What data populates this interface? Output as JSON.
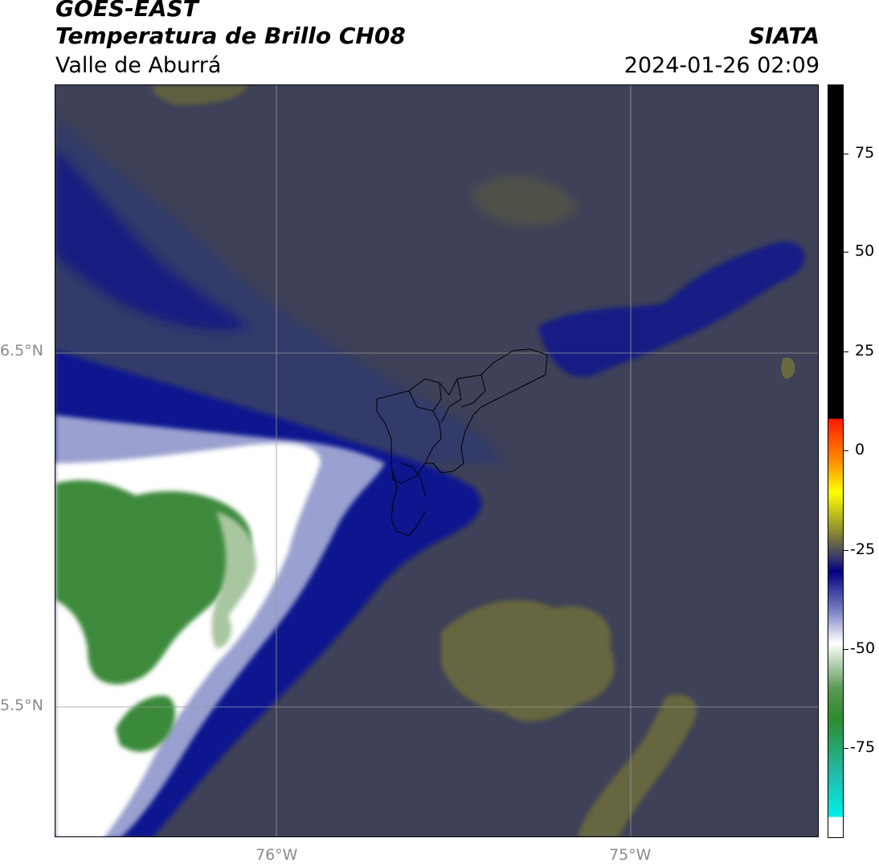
{
  "header": {
    "satellite": "GOES-EAST",
    "product": "Temperatura de Brillo CH08",
    "region": "Valle de Aburrá",
    "agency": "SIATA",
    "datetime": "2024-01-26 02:09"
  },
  "map": {
    "lat_labels": [
      "6.5°N",
      "5.5°N"
    ],
    "lon_labels": [
      "76°W",
      "75°W"
    ]
  },
  "colorbar": {
    "tick_labels": [
      "75",
      "50",
      "25",
      "0",
      "-25",
      "-50",
      "-75"
    ],
    "colors": {
      "black": "#000000",
      "red": "#ff2200",
      "orange": "#ff8a00",
      "yellow": "#ffff00",
      "olive": "#6b6a3a",
      "navy": "#00007a",
      "white": "#ffffff",
      "green": "#3a8c3a",
      "cyan": "#00e6e0"
    }
  },
  "colors": {
    "background_gray": "#3f4256",
    "olive_region": "#66663e",
    "navy_band": "#000c8c",
    "cold_white": "#ffffff",
    "cold_green": "#3f8a3f"
  }
}
